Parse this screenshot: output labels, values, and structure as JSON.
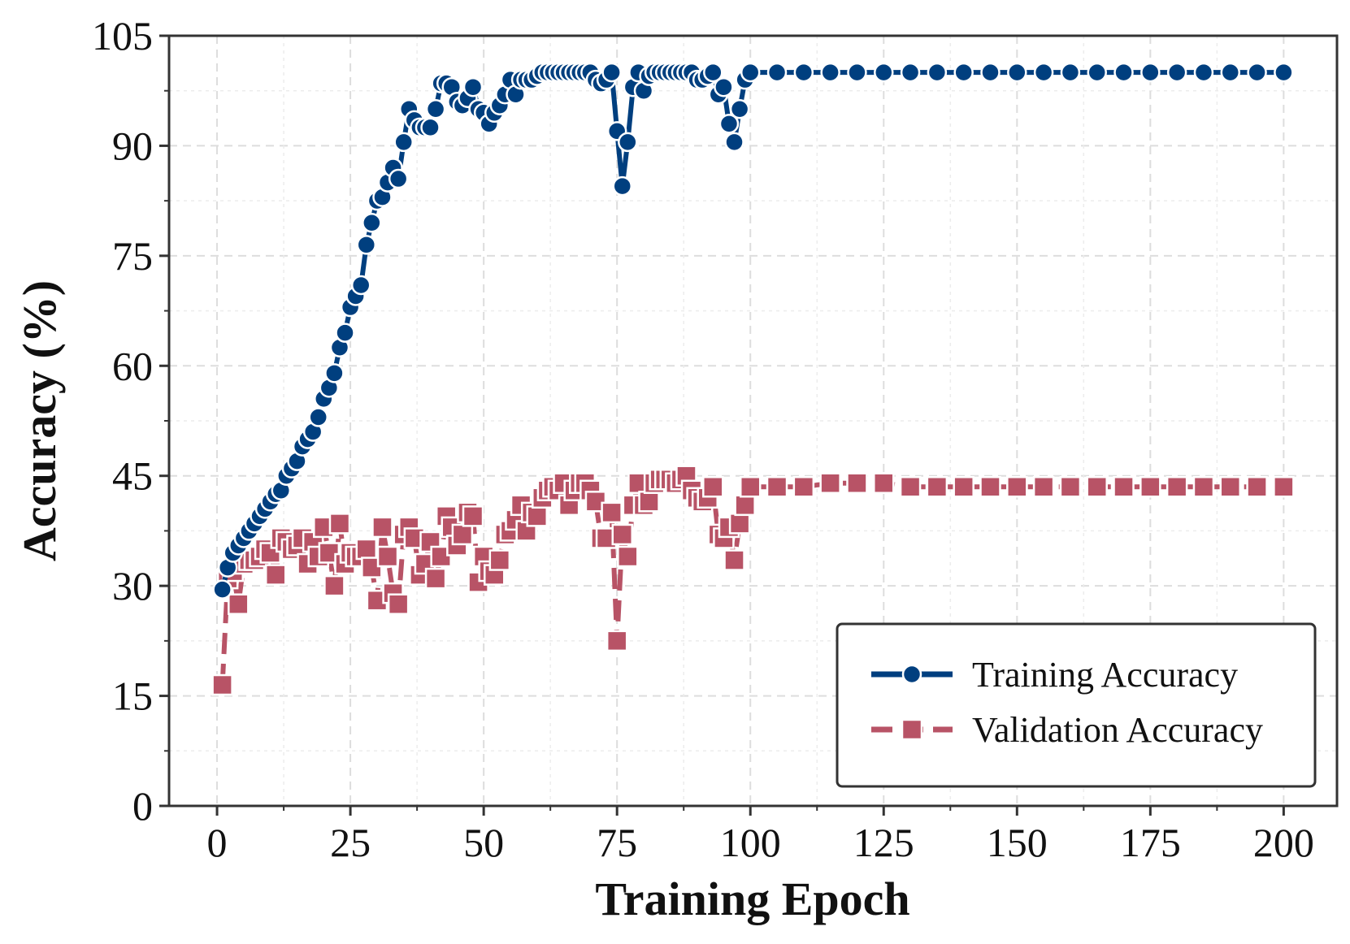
{
  "chart_data": {
    "type": "line",
    "title": "",
    "xlabel": "Training Epoch",
    "ylabel": "Accuracy (%)",
    "xlim": [
      -9,
      210
    ],
    "ylim": [
      0,
      105
    ],
    "xticks": [
      0,
      25,
      50,
      75,
      100,
      125,
      150,
      175,
      200
    ],
    "yticks": [
      0,
      15,
      30,
      45,
      60,
      75,
      90,
      105
    ],
    "grid": true,
    "legend_position": "lower-right",
    "colors": {
      "train": "#003f7f",
      "val": "#b85366",
      "axis": "#333333",
      "grid": "#dddddd"
    },
    "series": [
      {
        "name": "Training Accuracy",
        "marker": "circle",
        "linestyle": "solid",
        "x": [
          1,
          2,
          3,
          4,
          5,
          6,
          7,
          8,
          9,
          10,
          11,
          12,
          13,
          14,
          15,
          16,
          17,
          18,
          19,
          20,
          21,
          22,
          23,
          24,
          25,
          26,
          27,
          28,
          29,
          30,
          31,
          32,
          33,
          34,
          35,
          36,
          37,
          38,
          39,
          40,
          41,
          42,
          43,
          44,
          45,
          46,
          47,
          48,
          49,
          50,
          51,
          52,
          53,
          54,
          55,
          56,
          57,
          58,
          59,
          60,
          61,
          62,
          63,
          64,
          65,
          66,
          67,
          68,
          69,
          70,
          71,
          72,
          73,
          74,
          75,
          76,
          77,
          78,
          79,
          80,
          81,
          82,
          83,
          84,
          85,
          86,
          87,
          88,
          89,
          90,
          91,
          92,
          93,
          94,
          95,
          96,
          97,
          98,
          99,
          100,
          105,
          110,
          115,
          120,
          125,
          130,
          135,
          140,
          145,
          150,
          155,
          160,
          165,
          170,
          175,
          180,
          185,
          190,
          195,
          200
        ],
        "values": [
          29.5,
          32.5,
          34.5,
          35.5,
          36.5,
          37.5,
          38.5,
          39.5,
          40.5,
          41.5,
          42.5,
          43,
          45,
          46,
          47,
          49,
          50,
          51,
          53,
          55.5,
          57,
          59,
          62.5,
          64.5,
          68,
          69.5,
          71,
          76.5,
          79.5,
          82.5,
          83,
          85,
          87,
          85.5,
          90.5,
          95,
          93.5,
          92.5,
          92.5,
          92.5,
          95,
          98.5,
          98.5,
          98,
          96,
          95.5,
          96.5,
          98,
          95,
          94.5,
          93,
          94.5,
          95.5,
          97,
          99,
          97,
          99,
          99,
          99,
          99.5,
          100,
          100,
          100,
          100,
          100,
          100,
          100,
          100,
          100,
          100,
          99,
          98.5,
          99,
          100,
          92,
          84.5,
          90.5,
          98,
          100,
          97.5,
          99.5,
          100,
          100,
          100,
          100,
          100,
          100,
          100,
          100,
          99,
          99,
          99.5,
          100,
          97,
          98,
          93,
          90.5,
          95,
          99,
          100,
          100,
          100,
          100,
          100,
          100,
          100,
          100,
          100,
          100,
          100,
          100,
          100,
          100,
          100,
          100,
          100,
          100,
          100,
          100,
          100
        ]
      },
      {
        "name": "Validation Accuracy",
        "marker": "square",
        "linestyle": "dashed",
        "x": [
          1,
          2,
          3,
          4,
          5,
          6,
          7,
          8,
          9,
          10,
          11,
          12,
          13,
          14,
          15,
          16,
          17,
          18,
          19,
          20,
          21,
          22,
          23,
          24,
          25,
          26,
          27,
          28,
          29,
          30,
          31,
          32,
          33,
          34,
          35,
          36,
          37,
          38,
          39,
          40,
          41,
          42,
          43,
          44,
          45,
          46,
          47,
          48,
          49,
          50,
          51,
          52,
          53,
          54,
          55,
          56,
          57,
          58,
          59,
          60,
          61,
          62,
          63,
          64,
          65,
          66,
          67,
          68,
          69,
          70,
          71,
          72,
          73,
          74,
          75,
          76,
          77,
          78,
          79,
          80,
          81,
          82,
          83,
          84,
          85,
          86,
          87,
          88,
          89,
          90,
          91,
          92,
          93,
          94,
          95,
          96,
          97,
          98,
          99,
          100,
          105,
          110,
          115,
          120,
          125,
          130,
          135,
          140,
          145,
          150,
          155,
          160,
          165,
          170,
          175,
          180,
          185,
          190,
          195,
          200
        ],
        "values": [
          16.5,
          31,
          32,
          27.5,
          33,
          33.5,
          33.5,
          34,
          35,
          34.5,
          31.5,
          36.5,
          36,
          35,
          35.5,
          36.5,
          33,
          36,
          34,
          38,
          34.5,
          30,
          38.5,
          33,
          34.5,
          34,
          34,
          35,
          32.5,
          28,
          38,
          34,
          29,
          27.5,
          37,
          38,
          36.5,
          31.5,
          33,
          36,
          31,
          34,
          39.5,
          38,
          35.5,
          37,
          40,
          39.5,
          30.5,
          34,
          32,
          31.5,
          33.5,
          37,
          37.5,
          39,
          41,
          37.5,
          40,
          39.5,
          42,
          43,
          43.5,
          43,
          44,
          41,
          43,
          44,
          44,
          43,
          41.5,
          36.5,
          36.5,
          40,
          22.5,
          37,
          34,
          41,
          44,
          41,
          41.5,
          44,
          44.5,
          44.5,
          44.5,
          44,
          44.5,
          45,
          43,
          42,
          41.5,
          42,
          43.5,
          37,
          36.5,
          38,
          33.5,
          38.5,
          41,
          43.5,
          43.5,
          43.5,
          44,
          44,
          44,
          43.5,
          43.5,
          43.5,
          43.5,
          43.5,
          43.5,
          43.5,
          43.5,
          43.5,
          43.5,
          43.5,
          43.5,
          43.5,
          43.5,
          43.5
        ]
      }
    ]
  }
}
